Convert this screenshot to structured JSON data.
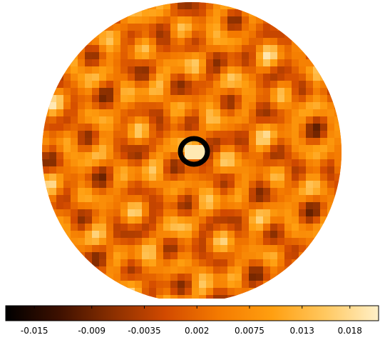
{
  "chart_data": {
    "type": "heatmap",
    "projection": "circular sky map (orthographic disk)",
    "colormap": [
      "#000000",
      "#3d1000",
      "#8a2f00",
      "#d24a00",
      "#f47a00",
      "#ff9f10",
      "#ffc860",
      "#fff0c8"
    ],
    "colorbar": {
      "min": -0.018,
      "max": 0.021,
      "ticks": [
        -0.015,
        -0.009,
        -0.0035,
        0.002,
        0.0075,
        0.013,
        0.018
      ],
      "tick_labels": [
        "-0.015",
        "-0.009",
        "-0.0035",
        "0.002",
        "0.0075",
        "0.013",
        "0.018"
      ],
      "orientation": "horizontal",
      "position": "bottom"
    },
    "grid": false,
    "annotations": [
      {
        "shape": "ring",
        "color": "#000000",
        "location": "slightly right of map center"
      }
    ]
  }
}
